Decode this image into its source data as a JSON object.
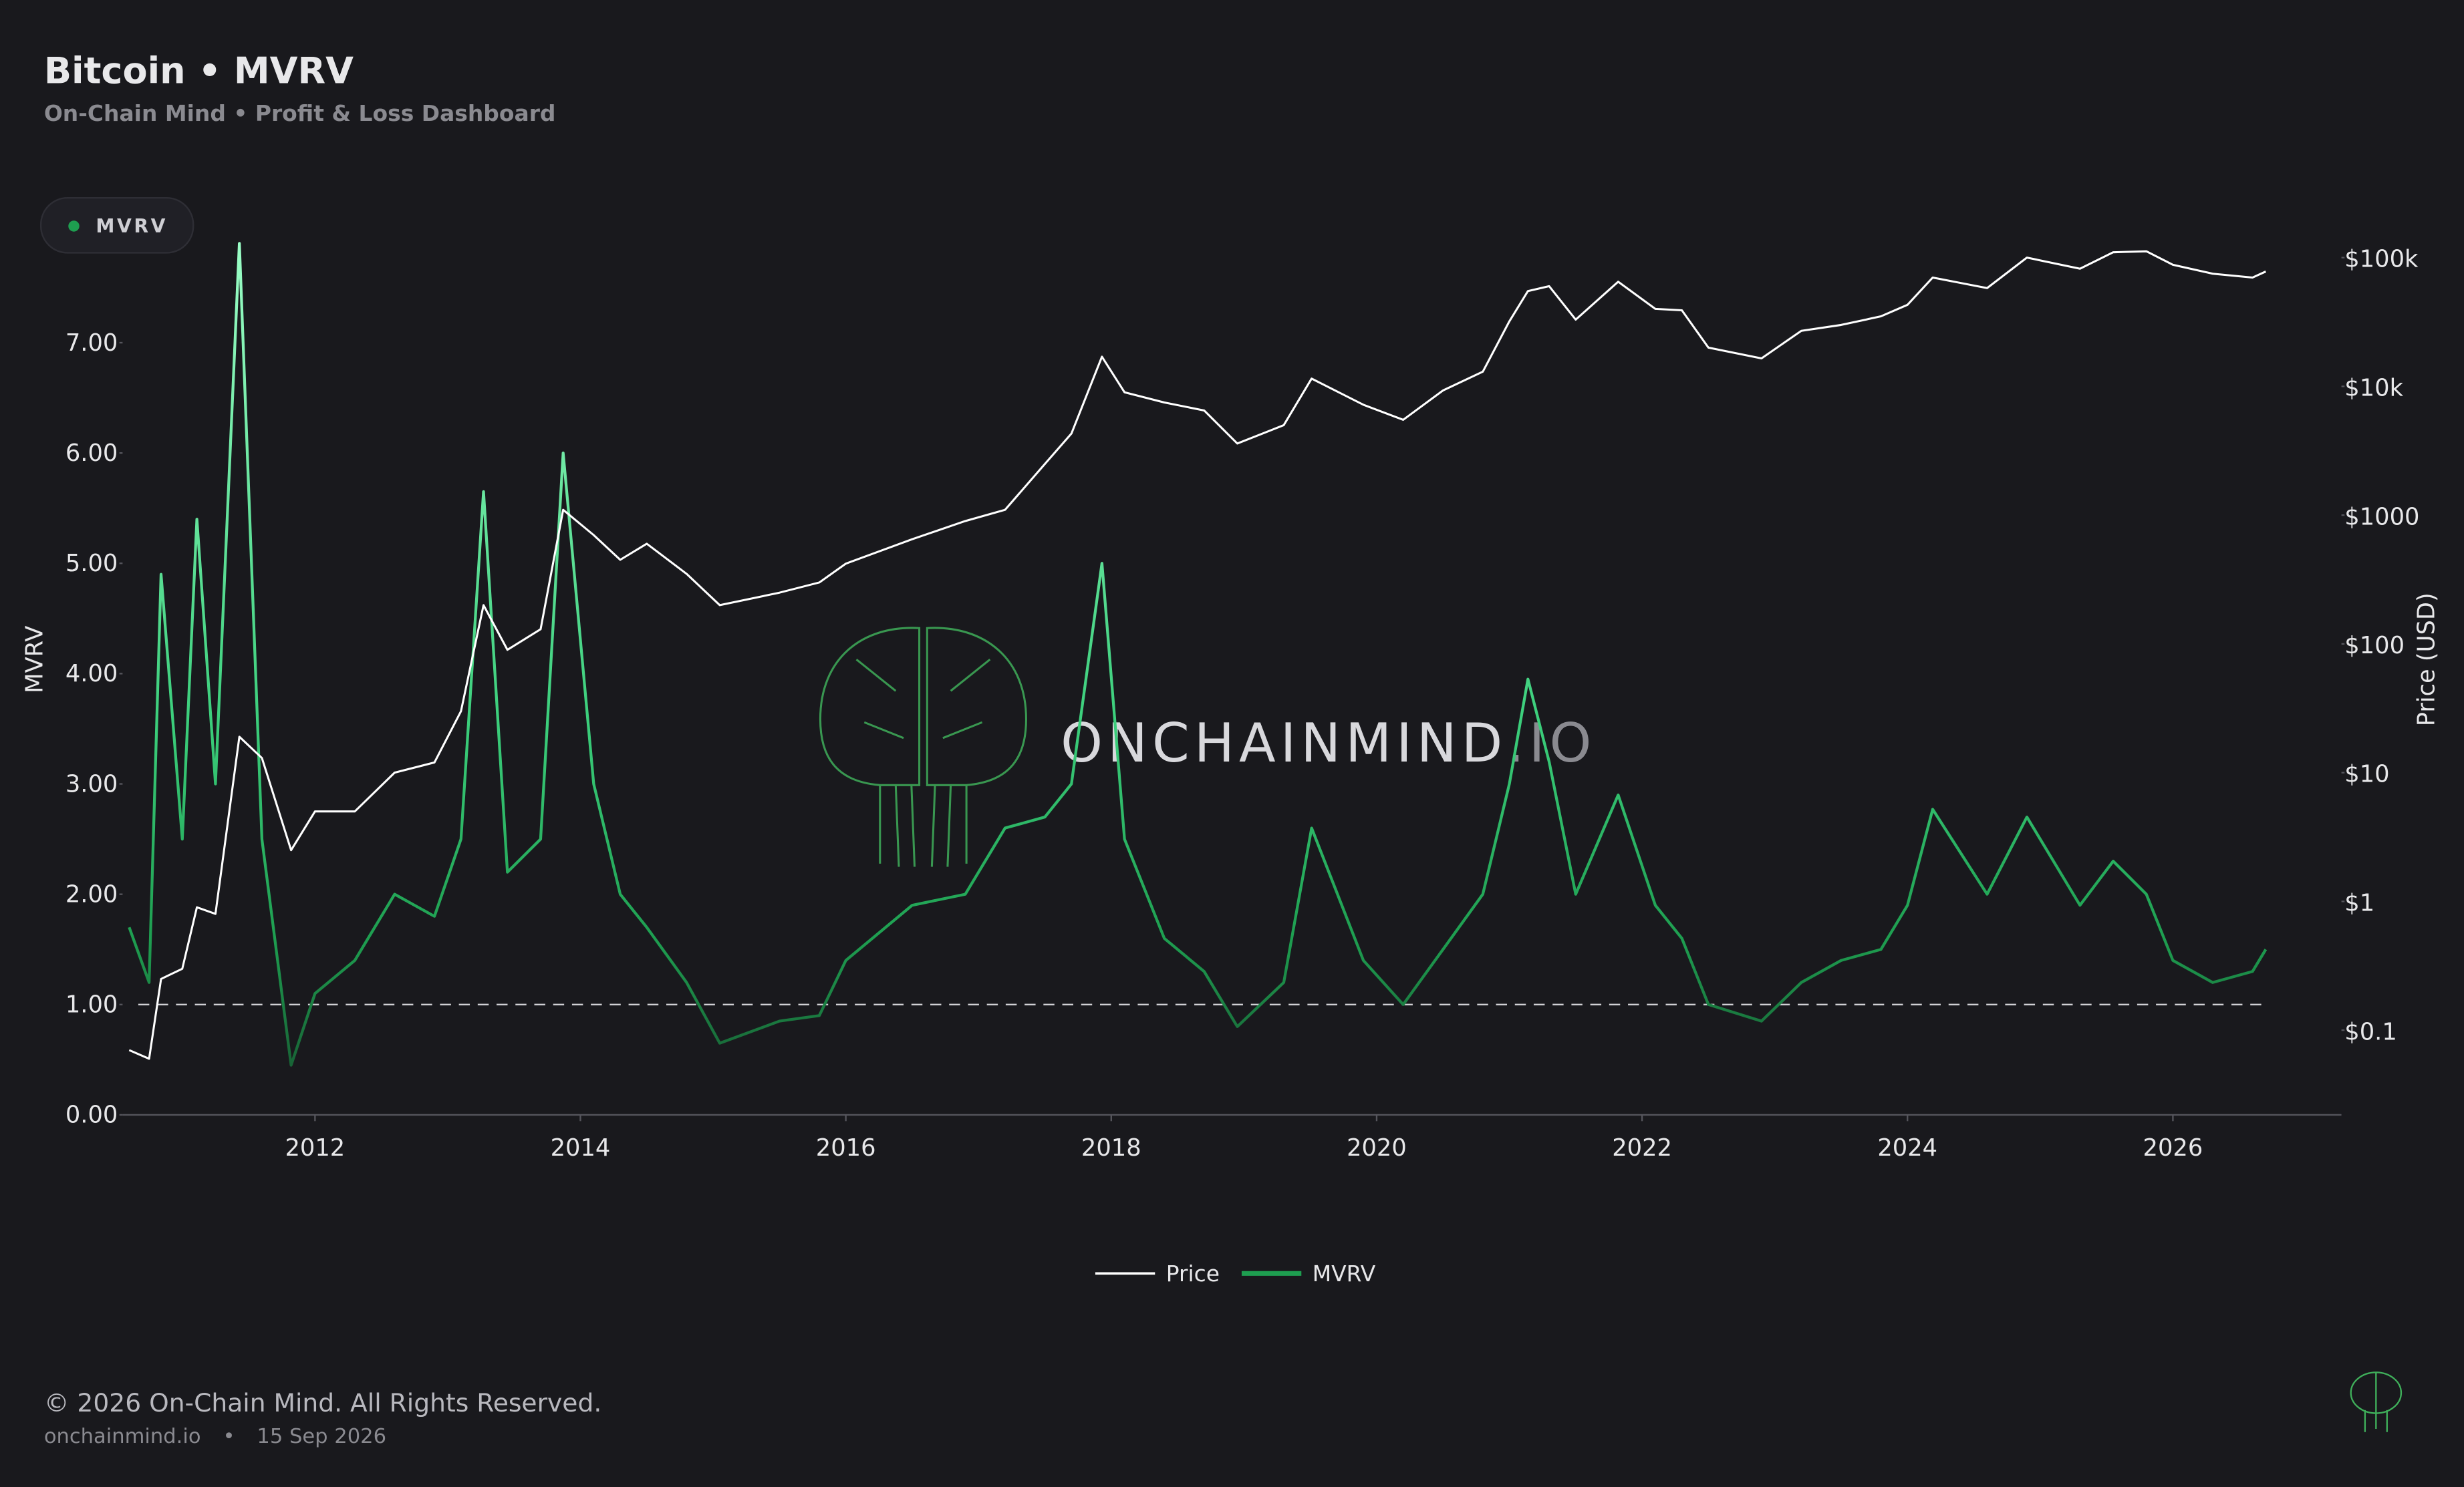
{
  "header": {
    "title": "Bitcoin • MVRV",
    "subtitle": "On-Chain Mind • Profit & Loss Dashboard",
    "badge": "MVRV"
  },
  "watermark": [
    "ONCHAINMIND",
    ".IO"
  ],
  "footer": {
    "copyright": "© 2026 On-Chain Mind. All Rights Reserved.",
    "site": "onchainmind.io",
    "separator": "•",
    "date": "15 Sep 2026"
  },
  "chart_data": {
    "type": "line",
    "ylabel": "MVRV",
    "y2label": "Price (USD)",
    "grid": false,
    "y2log": true,
    "legend": "bottom",
    "hline": 1,
    "xlim": [
      2010.55,
      2027.27
    ],
    "xticks": [
      2012,
      2014,
      2016,
      2018,
      2020,
      2022,
      2024,
      2026
    ],
    "ylim": [
      0,
      8
    ],
    "yticks": [
      {
        "value": 0,
        "label": "0.00"
      },
      {
        "value": 1,
        "label": "1.00"
      },
      {
        "value": 2,
        "label": "2.00"
      },
      {
        "value": 3,
        "label": "3.00"
      },
      {
        "value": 4,
        "label": "4.00"
      },
      {
        "value": 5,
        "label": "5.00"
      },
      {
        "value": 6,
        "label": "6.00"
      },
      {
        "value": 7,
        "label": "7.00"
      }
    ],
    "y2lim": [
      0.022,
      157000
    ],
    "y2ticks": [
      {
        "value": 0.1,
        "label": "$0.1"
      },
      {
        "value": 1,
        "label": "$1"
      },
      {
        "value": 10,
        "label": "$10"
      },
      {
        "value": 100,
        "label": "$100"
      },
      {
        "value": 1000,
        "label": "$1000"
      },
      {
        "value": 10000,
        "label": "$10k"
      },
      {
        "value": 100000,
        "label": "$100k"
      }
    ],
    "x": [
      2010.6,
      2010.75,
      2010.84,
      2011.0,
      2011.11,
      2011.25,
      2011.43,
      2011.6,
      2011.82,
      2012.0,
      2012.3,
      2012.6,
      2012.9,
      2013.1,
      2013.27,
      2013.45,
      2013.7,
      2013.87,
      2014.1,
      2014.3,
      2014.5,
      2014.8,
      2015.05,
      2015.5,
      2015.8,
      2016.0,
      2016.5,
      2016.9,
      2017.2,
      2017.5,
      2017.7,
      2017.93,
      2018.1,
      2018.4,
      2018.7,
      2018.95,
      2019.3,
      2019.51,
      2019.9,
      2020.2,
      2020.5,
      2020.8,
      2021.0,
      2021.14,
      2021.3,
      2021.5,
      2021.82,
      2022.1,
      2022.3,
      2022.5,
      2022.9,
      2023.2,
      2023.5,
      2023.8,
      2024.0,
      2024.19,
      2024.6,
      2024.9,
      2025.3,
      2025.55,
      2025.8,
      2026.0,
      2026.3,
      2026.6,
      2026.7
    ],
    "series": [
      {
        "name": "Price",
        "color": "#ffffff",
        "axis": "y2",
        "values": [
          0.07,
          0.06,
          0.25,
          0.3,
          0.9,
          0.8,
          19,
          13,
          2.5,
          5,
          5,
          10,
          12,
          30,
          200,
          90,
          130,
          1100,
          700,
          450,
          600,
          350,
          200,
          250,
          300,
          420,
          650,
          900,
          1100,
          2500,
          4300,
          17000,
          9000,
          7500,
          6500,
          3600,
          5000,
          11500,
          7200,
          5500,
          9300,
          13000,
          32000,
          55000,
          60000,
          33000,
          65000,
          40000,
          39000,
          20000,
          16500,
          27000,
          30000,
          35000,
          43000,
          70000,
          58000,
          100000,
          82000,
          110000,
          112000,
          88000,
          75000,
          70000,
          78000
        ]
      },
      {
        "name": "MVRV",
        "color": "#1e9e50",
        "values": [
          1.7,
          1.2,
          4.9,
          2.5,
          5.4,
          3.0,
          7.9,
          2.5,
          0.45,
          1.1,
          1.4,
          2.0,
          1.8,
          2.5,
          5.65,
          2.2,
          2.5,
          6.0,
          3.0,
          2.0,
          1.7,
          1.2,
          0.65,
          0.85,
          0.9,
          1.4,
          1.9,
          2.0,
          2.6,
          2.7,
          3.0,
          5.0,
          2.5,
          1.6,
          1.3,
          0.8,
          1.2,
          2.6,
          1.4,
          1.0,
          1.5,
          2.0,
          3.0,
          3.95,
          3.2,
          2.0,
          2.9,
          1.9,
          1.6,
          1.0,
          0.85,
          1.2,
          1.4,
          1.5,
          1.9,
          2.77,
          2.0,
          2.7,
          1.9,
          2.3,
          2.0,
          1.4,
          1.2,
          1.3,
          1.5
        ]
      }
    ]
  }
}
